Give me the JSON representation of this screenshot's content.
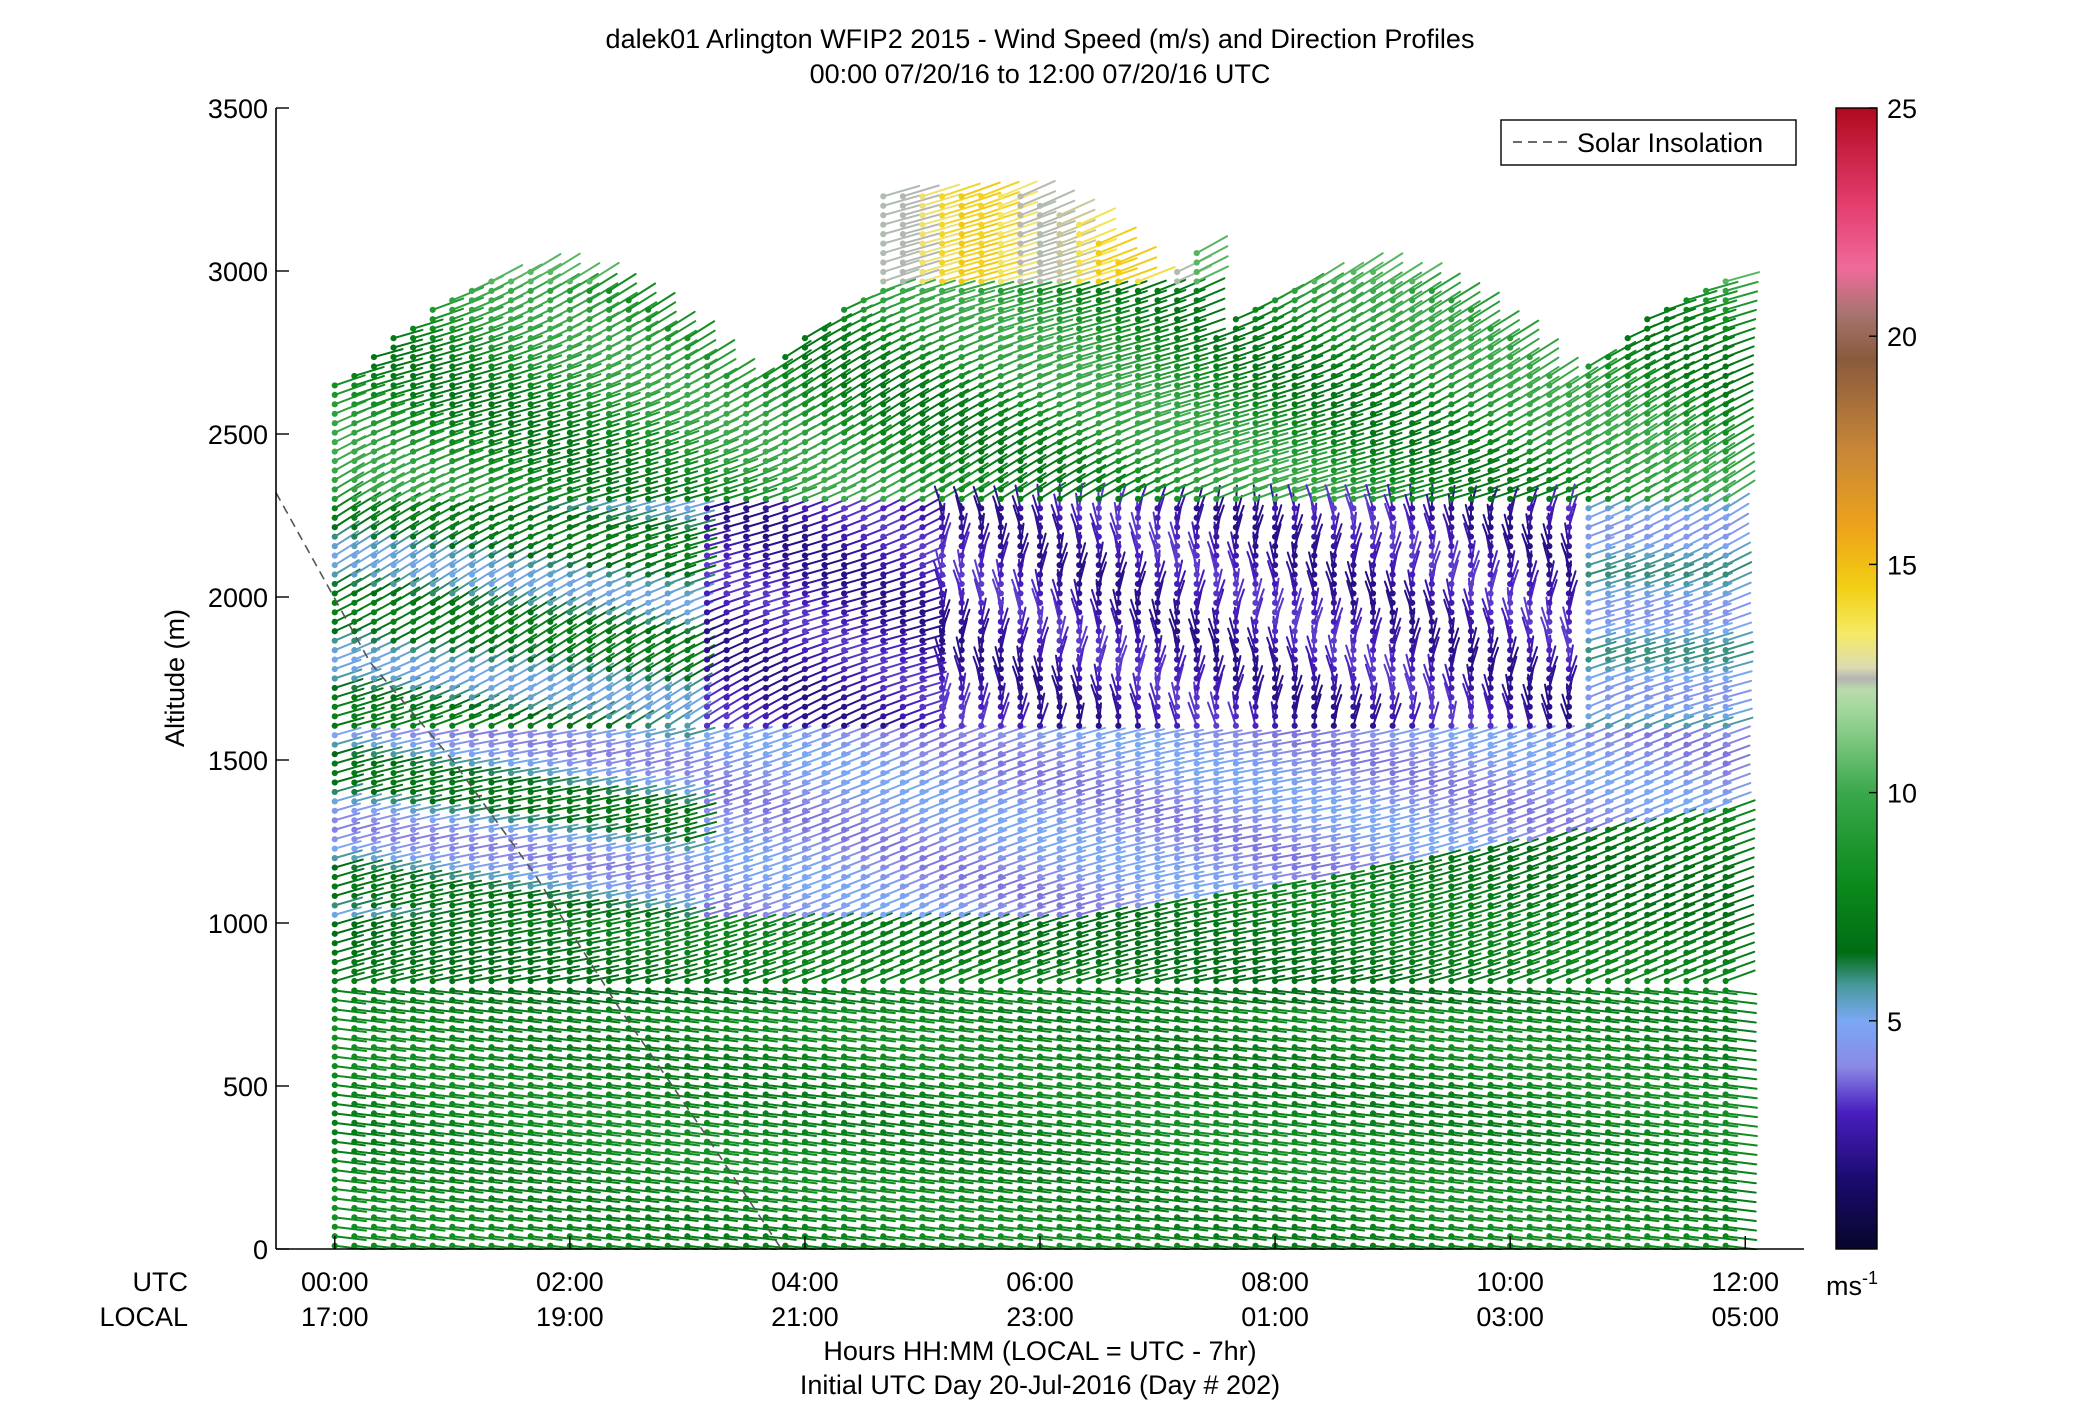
{
  "chart_data": {
    "type": "barbs",
    "title": "dalek01 Arlington WFIP2 2015 - Wind Speed (m/s) and Direction Profiles",
    "subtitle": "00:00 07/20/16 to 12:00 07/20/16  UTC",
    "ylabel": "Altitude (m)",
    "xlabel": "Hours HH:MM  (LOCAL = UTC - 7hr)",
    "xlabel2": "Initial UTC Day 20-Jul-2016 (Day # 202)",
    "utc_row_label": "UTC",
    "local_row_label": "LOCAL",
    "xlim": [
      -0.5,
      12.5
    ],
    "ylim": [
      0,
      3500
    ],
    "x_ticks": [
      0,
      2,
      4,
      6,
      8,
      10,
      12
    ],
    "utc_tick_labels": [
      "00:00",
      "02:00",
      "04:00",
      "06:00",
      "08:00",
      "10:00",
      "12:00"
    ],
    "local_tick_labels": [
      "17:00",
      "19:00",
      "21:00",
      "23:00",
      "01:00",
      "03:00",
      "05:00"
    ],
    "y_ticks": [
      0,
      500,
      1000,
      1500,
      2000,
      2500,
      3000,
      3500
    ],
    "y_tick_labels": [
      "0",
      "500",
      "1000",
      "1500",
      "2000",
      "2500",
      "3000",
      "3500"
    ],
    "legend": {
      "label": "Solar Insolation",
      "position": "top-right"
    },
    "solar_insolation_line": {
      "x": [
        -0.5,
        0.3,
        1.0,
        1.7,
        2.4,
        3.1,
        3.8
      ],
      "y": [
        2320,
        1800,
        1500,
        1150,
        750,
        380,
        0
      ]
    },
    "colorbar": {
      "range": [
        0,
        25
      ],
      "ticks": [
        5,
        10,
        15,
        20,
        25
      ],
      "tick_labels": [
        "5",
        "10",
        "15",
        "20",
        "25"
      ],
      "unit_label": "ms",
      "unit_superscript": "-1"
    },
    "series_note": "Wind barbs at ~10-minute intervals from 00:00 to 12:00 UTC; colour encodes wind speed (m/s)"
  }
}
